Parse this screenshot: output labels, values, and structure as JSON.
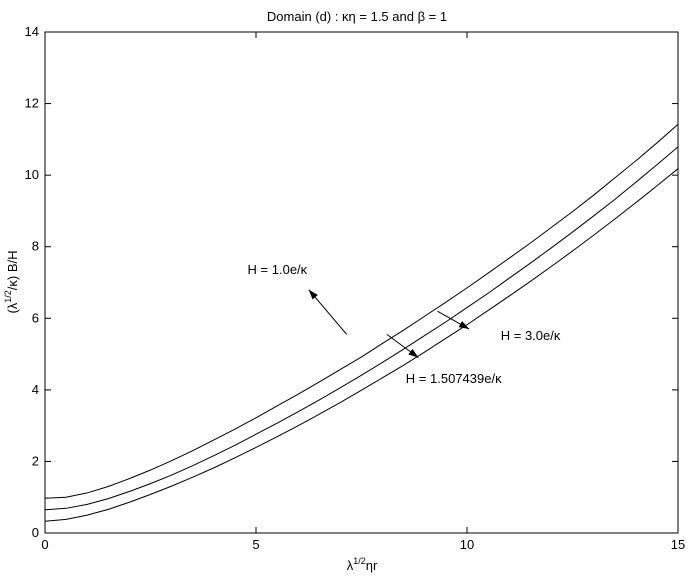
{
  "chart_data": {
    "type": "line",
    "title": "Domain (d) : κη = 1.5 and β = 1",
    "xlabel": {
      "base": "λ",
      "sup": "1/2",
      "rest": "ηr"
    },
    "ylabel": {
      "pre": "(λ",
      "sup": "1/2",
      "post": "/κ) B/H"
    },
    "xlim": [
      0,
      15
    ],
    "ylim": [
      0,
      14
    ],
    "xticks": [
      0,
      5,
      10,
      15
    ],
    "yticks": [
      0,
      2,
      4,
      6,
      8,
      10,
      12,
      14
    ],
    "grid": false,
    "series": [
      {
        "name": "H = 1.0e/κ",
        "values": [
          [
            0,
            0.97
          ],
          [
            0.5,
            1.0
          ],
          [
            1,
            1.12
          ],
          [
            1.5,
            1.3
          ],
          [
            2,
            1.52
          ],
          [
            2.5,
            1.76
          ],
          [
            3,
            2.02
          ],
          [
            3.5,
            2.3
          ],
          [
            4,
            2.6
          ],
          [
            4.5,
            2.9
          ],
          [
            5,
            3.22
          ],
          [
            5.5,
            3.55
          ],
          [
            6,
            3.88
          ],
          [
            6.5,
            4.22
          ],
          [
            7,
            4.57
          ],
          [
            7.5,
            4.92
          ],
          [
            8,
            5.3
          ],
          [
            8.5,
            5.67
          ],
          [
            9,
            6.06
          ],
          [
            9.5,
            6.45
          ],
          [
            10,
            6.85
          ],
          [
            10.5,
            7.26
          ],
          [
            11,
            7.68
          ],
          [
            11.5,
            8.1
          ],
          [
            12,
            8.54
          ],
          [
            12.5,
            8.98
          ],
          [
            13,
            9.44
          ],
          [
            13.5,
            9.92
          ],
          [
            14,
            10.4
          ],
          [
            14.5,
            10.9
          ],
          [
            15,
            11.42
          ]
        ]
      },
      {
        "name": "H = 1.507439e/κ",
        "values": [
          [
            0,
            0.65
          ],
          [
            0.5,
            0.69
          ],
          [
            1,
            0.8
          ],
          [
            1.5,
            0.96
          ],
          [
            2,
            1.16
          ],
          [
            2.5,
            1.38
          ],
          [
            3,
            1.62
          ],
          [
            3.5,
            1.88
          ],
          [
            4,
            2.16
          ],
          [
            4.5,
            2.45
          ],
          [
            5,
            2.76
          ],
          [
            5.5,
            3.07
          ],
          [
            6,
            3.39
          ],
          [
            6.5,
            3.72
          ],
          [
            7,
            4.06
          ],
          [
            7.5,
            4.41
          ],
          [
            8,
            4.77
          ],
          [
            8.5,
            5.14
          ],
          [
            9,
            5.52
          ],
          [
            9.5,
            5.9
          ],
          [
            10,
            6.3
          ],
          [
            10.5,
            6.7
          ],
          [
            11,
            7.12
          ],
          [
            11.5,
            7.54
          ],
          [
            12,
            7.97
          ],
          [
            12.5,
            8.41
          ],
          [
            13,
            8.86
          ],
          [
            13.5,
            9.32
          ],
          [
            14,
            9.8
          ],
          [
            14.5,
            10.29
          ],
          [
            15,
            10.79
          ]
        ]
      },
      {
        "name": "H = 3.0e/κ",
        "values": [
          [
            0,
            0.33
          ],
          [
            0.5,
            0.38
          ],
          [
            1,
            0.5
          ],
          [
            1.5,
            0.66
          ],
          [
            2,
            0.86
          ],
          [
            2.5,
            1.08
          ],
          [
            3,
            1.31
          ],
          [
            3.5,
            1.56
          ],
          [
            4,
            1.82
          ],
          [
            4.5,
            2.1
          ],
          [
            5,
            2.39
          ],
          [
            5.5,
            2.69
          ],
          [
            6,
            3.0
          ],
          [
            6.5,
            3.32
          ],
          [
            7,
            3.65
          ],
          [
            7.5,
            3.99
          ],
          [
            8,
            4.34
          ],
          [
            8.5,
            4.69
          ],
          [
            9,
            5.06
          ],
          [
            9.5,
            5.44
          ],
          [
            10,
            5.82
          ],
          [
            10.5,
            6.22
          ],
          [
            11,
            6.62
          ],
          [
            11.5,
            7.03
          ],
          [
            12,
            7.45
          ],
          [
            12.5,
            7.88
          ],
          [
            13,
            8.32
          ],
          [
            13.5,
            8.77
          ],
          [
            14,
            9.23
          ],
          [
            14.5,
            9.7
          ],
          [
            15,
            10.18
          ]
        ]
      }
    ],
    "annotations": [
      {
        "text": "H = 1.0e/κ",
        "anchor": "start",
        "x": 4.8,
        "y": 7.35,
        "arrow": [
          [
            7.15,
            5.55
          ],
          [
            6.25,
            6.8
          ]
        ]
      },
      {
        "text": "H = 1.507439e/κ",
        "anchor": "start",
        "x": 8.55,
        "y": 4.3,
        "arrow": [
          [
            8.1,
            5.55
          ],
          [
            8.85,
            4.9
          ]
        ]
      },
      {
        "text": "H = 3.0e/κ",
        "anchor": "start",
        "x": 10.8,
        "y": 5.5,
        "arrow": [
          [
            9.3,
            6.2
          ],
          [
            10.05,
            5.7
          ]
        ]
      }
    ]
  }
}
